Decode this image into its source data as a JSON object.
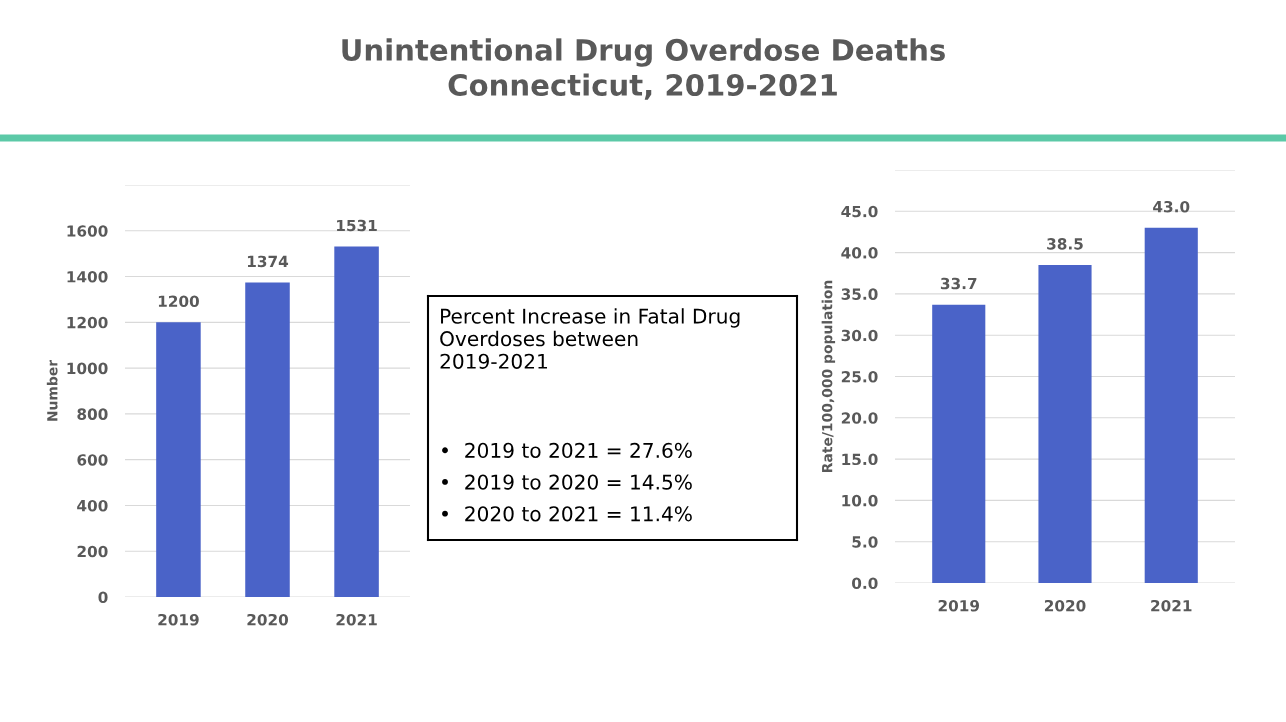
{
  "chart_data": [
    {
      "type": "bar",
      "title": "Unintentional Drug Overdose Deaths\nConnecticut, 2019-2021",
      "ylabel": "Number",
      "categories": [
        "2019",
        "2020",
        "2021"
      ],
      "values": [
        1200,
        1374,
        1531
      ],
      "color": "#4a63c8",
      "ylim": [
        0,
        1800
      ],
      "yticks": [
        0,
        200,
        400,
        600,
        800,
        1000,
        1200,
        1400,
        1600,
        {
          "value": 1800,
          "label": null
        }
      ],
      "grid": "y",
      "data_labels": true
    },
    {
      "type": "other",
      "annotations": [
        "Percent Increase in Fatal Drug Overdoses between 2019-2021",
        "•  2019 to 2021 = 27.6%",
        "•  2019 to 2020 = 14.5%",
        "•  2020 to 2021 = 11.4%"
      ]
    },
    {
      "type": "bar",
      "ylabel": "Rate/100,000 population",
      "categories": [
        "2019",
        "2020",
        "2021"
      ],
      "values": [
        33.7,
        38.5,
        43.0
      ],
      "value_labels": [
        "33.7",
        "38.5",
        "43.0"
      ],
      "color": "#4a63c8",
      "ylim": [
        0,
        50
      ],
      "yticks": [
        {
          "value": 50,
          "label": null
        },
        {
          "value": 0,
          "label": "0.0"
        },
        {
          "value": 5,
          "label": "5.0"
        },
        {
          "value": 10,
          "label": "10.0"
        },
        {
          "value": 15,
          "label": "15.0"
        },
        {
          "value": 20,
          "label": "20.0"
        },
        {
          "value": 25,
          "label": "25.0"
        },
        {
          "value": 30,
          "label": "30.0"
        },
        {
          "value": 35,
          "label": "35.0"
        },
        {
          "value": 40,
          "label": "40.0"
        },
        {
          "value": 45,
          "label": "45.0"
        }
      ],
      "grid": "y"
    }
  ]
}
